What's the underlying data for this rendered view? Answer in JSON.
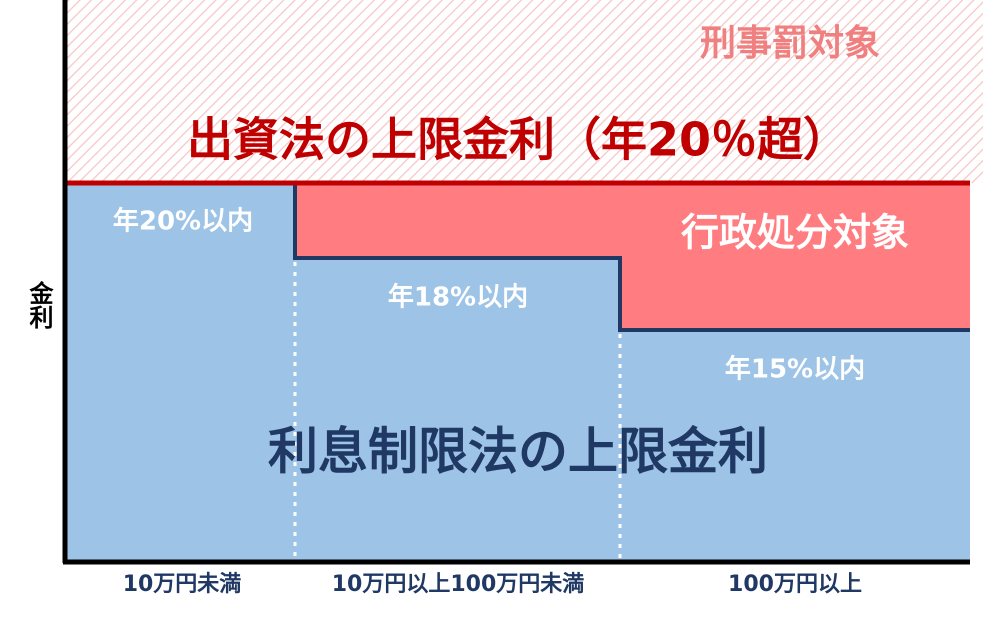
{
  "top_zone": {
    "label": "刑事罰対象",
    "limit": "出資法の上限金利（年20％超）"
  },
  "admin_zone": {
    "label": "行政処分対象"
  },
  "bands": [
    {
      "rate": "年20%以内",
      "x_label": "10万円未満"
    },
    {
      "rate": "年18%以内",
      "x_label": "10万円以上100万円未満"
    },
    {
      "rate": "年15%以内",
      "x_label": "100万円以上"
    }
  ],
  "lower_zone": {
    "label": "利息制限法の上限金利"
  },
  "y_axis": {
    "label": "金利"
  }
}
